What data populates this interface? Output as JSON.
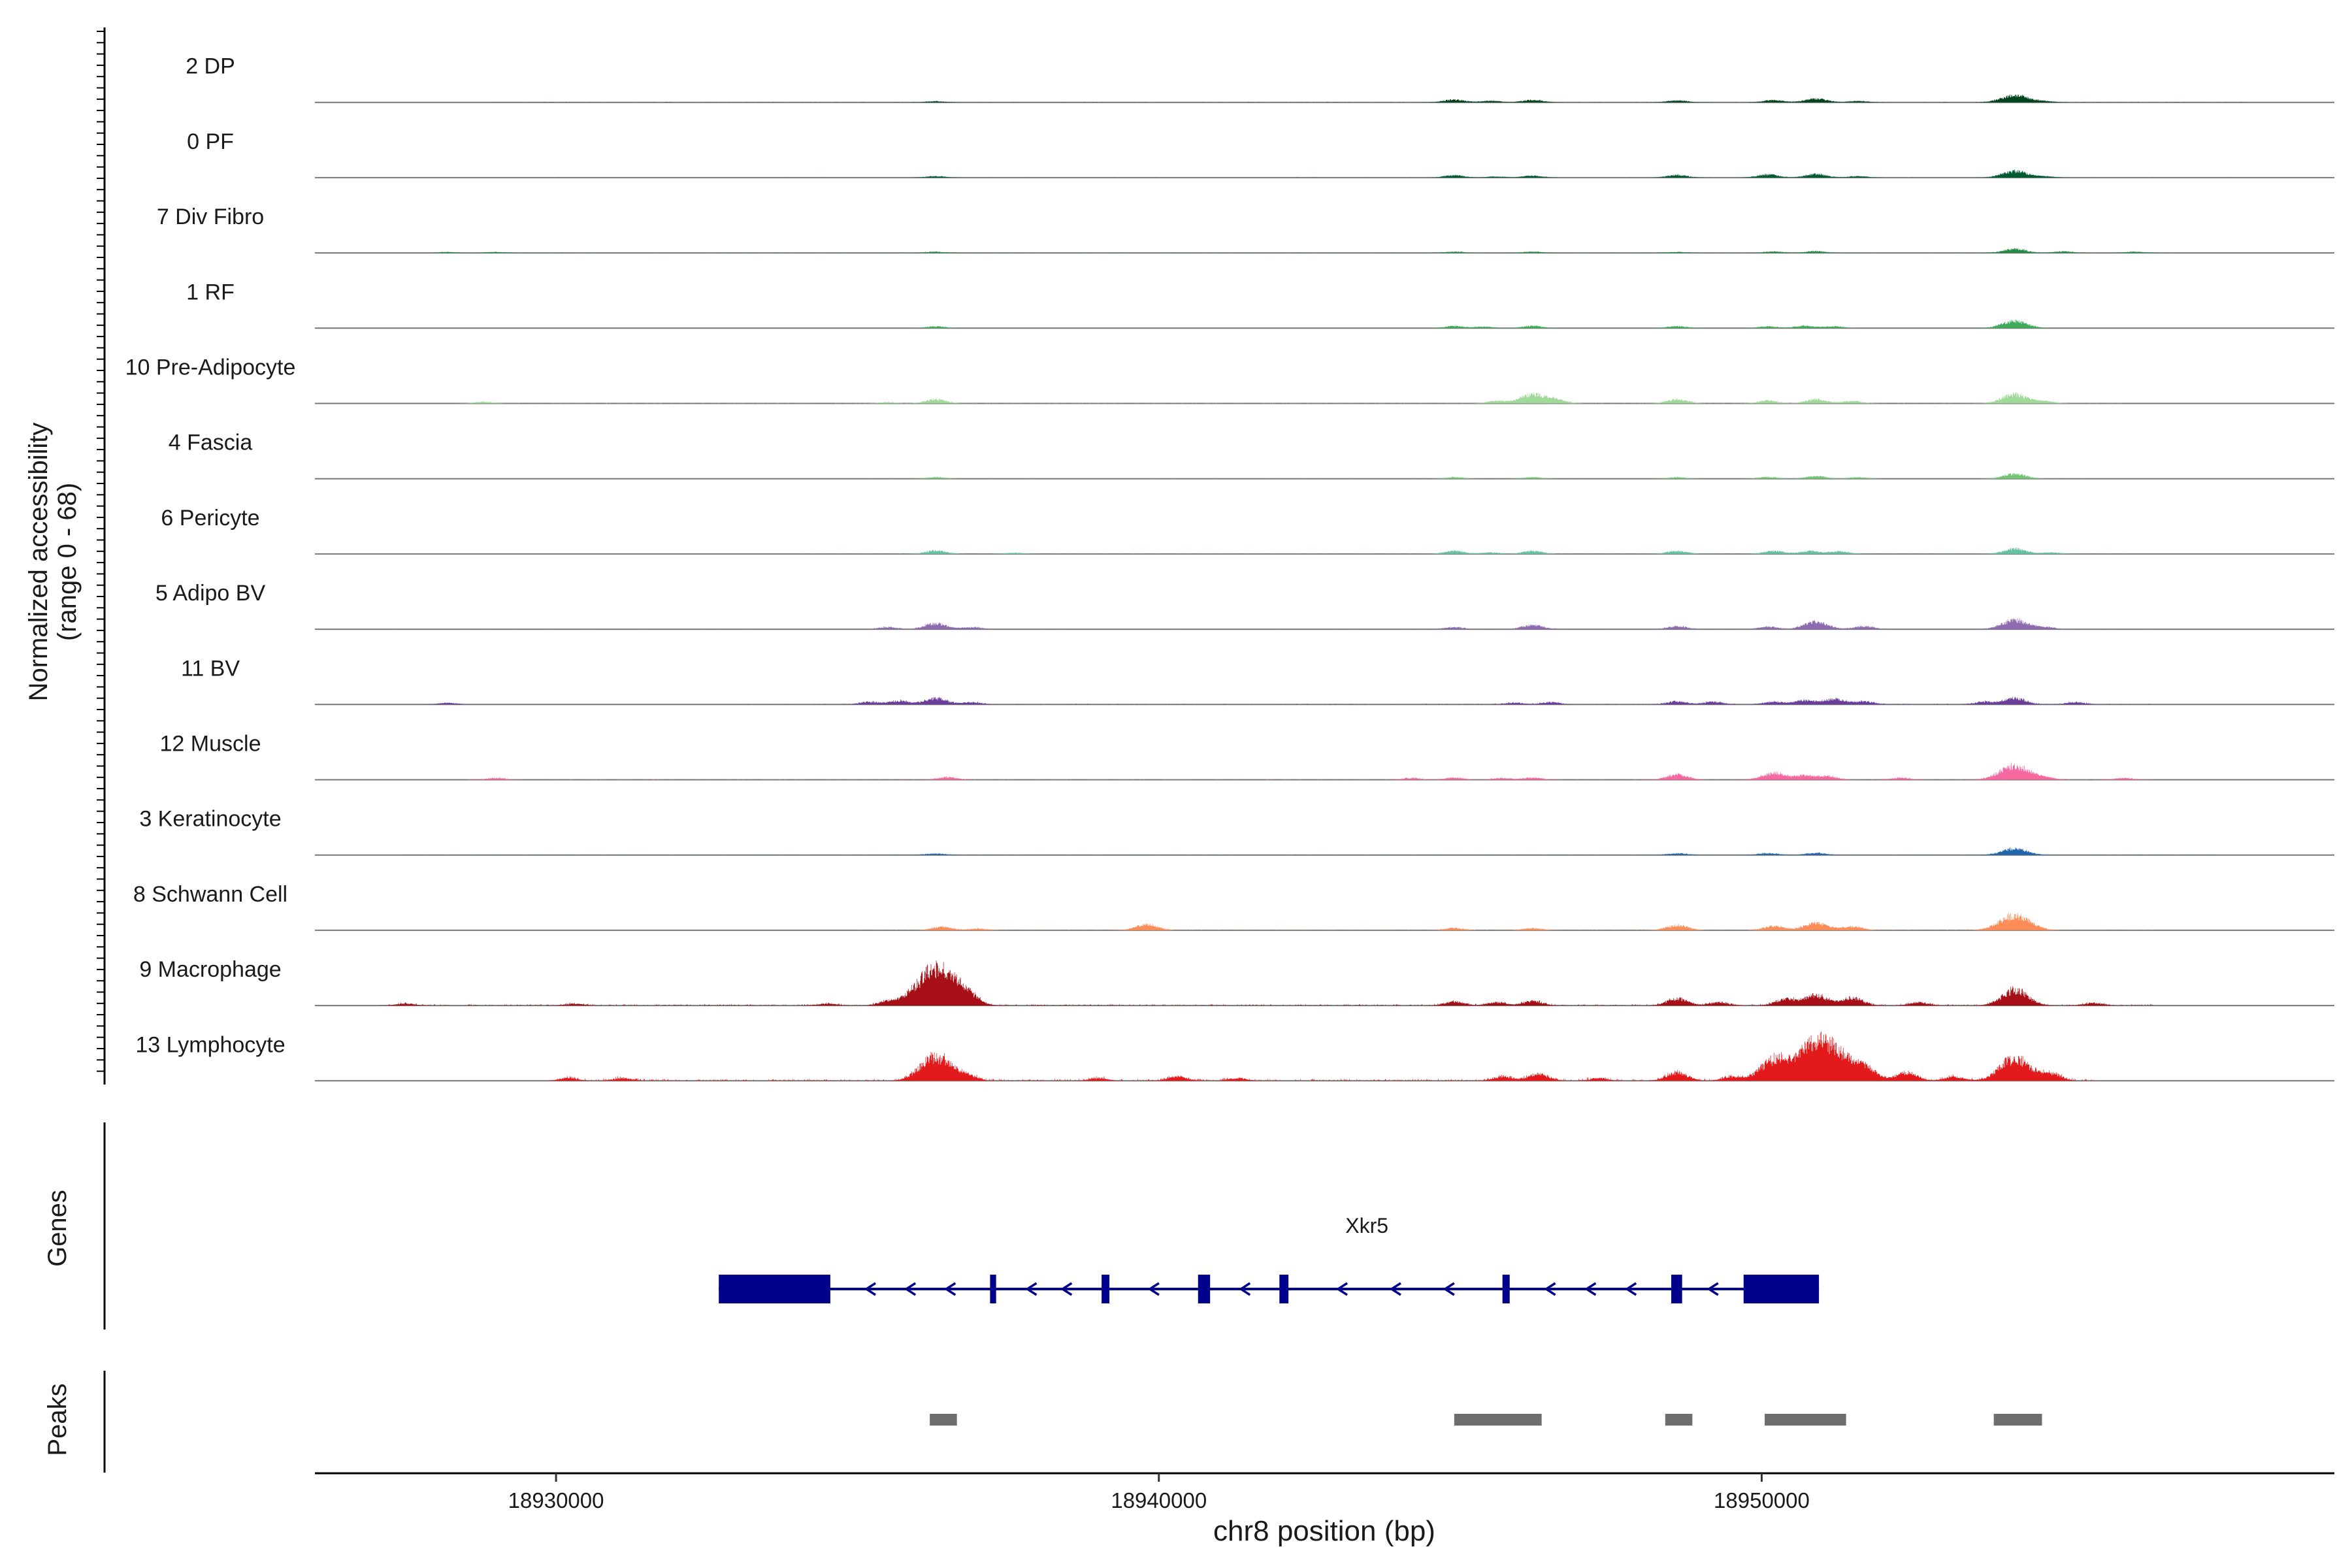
{
  "chart_data": {
    "type": "area",
    "title": "",
    "ylabel_line1": "Normalized accessibility",
    "ylabel_line2": "(range 0 - 68)",
    "y_range": [
      0,
      68
    ],
    "xlabel": "chr8 position (bp)",
    "x_range": [
      18926000,
      18959500
    ],
    "x_ticks": [
      {
        "value": 18930000,
        "label": "18930000"
      },
      {
        "value": 18940000,
        "label": "18940000"
      },
      {
        "value": 18950000,
        "label": "18950000"
      }
    ],
    "tracks": [
      {
        "name": "2 DP",
        "color": "#00441b",
        "scale": 0.28,
        "peaks": [
          [
            18936300,
            4
          ],
          [
            18944900,
            10
          ],
          [
            18945500,
            6
          ],
          [
            18946200,
            9
          ],
          [
            18948600,
            7
          ],
          [
            18950200,
            8
          ],
          [
            18950900,
            14
          ],
          [
            18951600,
            5
          ],
          [
            18954200,
            26
          ],
          [
            18954700,
            4
          ]
        ],
        "noise": [
          [
            18929000,
            18958000,
            0.9
          ]
        ]
      },
      {
        "name": "0 PF",
        "color": "#005a32",
        "scale": 0.3,
        "peaks": [
          [
            18936300,
            5
          ],
          [
            18944900,
            8
          ],
          [
            18945600,
            4
          ],
          [
            18946200,
            7
          ],
          [
            18948600,
            9
          ],
          [
            18950100,
            11
          ],
          [
            18950900,
            12
          ],
          [
            18951600,
            5
          ],
          [
            18954200,
            22
          ],
          [
            18954700,
            4
          ]
        ],
        "noise": [
          [
            18930000,
            18958000,
            0.7
          ]
        ]
      },
      {
        "name": "7 Div Fibro",
        "color": "#238b45",
        "scale": 0.3,
        "peaks": [
          [
            18928200,
            3
          ],
          [
            18929000,
            3
          ],
          [
            18936300,
            4
          ],
          [
            18944900,
            4
          ],
          [
            18946200,
            4
          ],
          [
            18948600,
            3
          ],
          [
            18950200,
            5
          ],
          [
            18950900,
            6
          ],
          [
            18954200,
            14
          ],
          [
            18955000,
            5
          ],
          [
            18956200,
            4
          ]
        ],
        "noise": [
          [
            18928000,
            18957000,
            1.2
          ]
        ]
      },
      {
        "name": "1 RF",
        "color": "#41ab5d",
        "scale": 0.3,
        "peaks": [
          [
            18936300,
            6
          ],
          [
            18944900,
            7
          ],
          [
            18945400,
            5
          ],
          [
            18946200,
            8
          ],
          [
            18948600,
            7
          ],
          [
            18950100,
            6
          ],
          [
            18950700,
            8
          ],
          [
            18951200,
            6
          ],
          [
            18954200,
            24
          ]
        ],
        "noise": [
          [
            18935000,
            18956000,
            0.6
          ]
        ]
      },
      {
        "name": "10 Pre-Adipocyte",
        "color": "#a1d99b",
        "scale": 0.42,
        "peaks": [
          [
            18928800,
            4
          ],
          [
            18935500,
            3
          ],
          [
            18936300,
            10
          ],
          [
            18945600,
            6
          ],
          [
            18946200,
            22
          ],
          [
            18946600,
            8
          ],
          [
            18948600,
            10
          ],
          [
            18950100,
            7
          ],
          [
            18950900,
            10
          ],
          [
            18951500,
            6
          ],
          [
            18954200,
            22
          ],
          [
            18954700,
            5
          ]
        ],
        "noise": [
          [
            18929000,
            18956000,
            0.8
          ]
        ]
      },
      {
        "name": "4 Fascia",
        "color": "#74c476",
        "scale": 0.3,
        "peaks": [
          [
            18936300,
            5
          ],
          [
            18944900,
            5
          ],
          [
            18946200,
            5
          ],
          [
            18948600,
            5
          ],
          [
            18950100,
            6
          ],
          [
            18950900,
            9
          ],
          [
            18951600,
            5
          ],
          [
            18954200,
            16
          ]
        ],
        "noise": [
          [
            18935000,
            18956000,
            0.6
          ]
        ]
      },
      {
        "name": "6 Pericyte",
        "color": "#66c2a4",
        "scale": 0.38,
        "peaks": [
          [
            18936300,
            9
          ],
          [
            18937600,
            3
          ],
          [
            18944900,
            8
          ],
          [
            18945500,
            4
          ],
          [
            18946200,
            8
          ],
          [
            18948600,
            8
          ],
          [
            18950200,
            8
          ],
          [
            18950800,
            8
          ],
          [
            18951300,
            7
          ],
          [
            18954200,
            14
          ],
          [
            18954800,
            4
          ]
        ],
        "noise": [
          [
            18934000,
            18956000,
            0.7
          ]
        ]
      },
      {
        "name": "5 Adipo BV",
        "color": "#8c6bb1",
        "scale": 0.42,
        "peaks": [
          [
            18935500,
            5
          ],
          [
            18936300,
            14
          ],
          [
            18936900,
            5
          ],
          [
            18944900,
            5
          ],
          [
            18946200,
            10
          ],
          [
            18948600,
            7
          ],
          [
            18950100,
            6
          ],
          [
            18950900,
            18
          ],
          [
            18951700,
            7
          ],
          [
            18954200,
            22
          ],
          [
            18954700,
            5
          ]
        ],
        "noise": [
          [
            18927000,
            18957000,
            1.1
          ]
        ]
      },
      {
        "name": "11 BV",
        "color": "#6a3d9a",
        "scale": 0.45,
        "peaks": [
          [
            18928200,
            4
          ],
          [
            18935200,
            6
          ],
          [
            18935700,
            8
          ],
          [
            18936300,
            14
          ],
          [
            18936900,
            5
          ],
          [
            18945900,
            4
          ],
          [
            18946500,
            5
          ],
          [
            18948600,
            7
          ],
          [
            18949200,
            6
          ],
          [
            18950200,
            6
          ],
          [
            18950700,
            9
          ],
          [
            18951200,
            12
          ],
          [
            18951700,
            7
          ],
          [
            18953700,
            6
          ],
          [
            18954200,
            14
          ],
          [
            18955200,
            5
          ]
        ],
        "noise": [
          [
            18933000,
            18956500,
            1.3
          ]
        ]
      },
      {
        "name": "12 Muscle",
        "color": "#f768a1",
        "scale": 0.42,
        "peaks": [
          [
            18929000,
            4
          ],
          [
            18936500,
            6
          ],
          [
            18944200,
            4
          ],
          [
            18944900,
            5
          ],
          [
            18945700,
            4
          ],
          [
            18946200,
            5
          ],
          [
            18948600,
            12
          ],
          [
            18950200,
            16
          ],
          [
            18950700,
            10
          ],
          [
            18951100,
            8
          ],
          [
            18952300,
            5
          ],
          [
            18954200,
            34
          ],
          [
            18954700,
            5
          ],
          [
            18956000,
            4
          ]
        ],
        "noise": [
          [
            18928500,
            18956500,
            1.3
          ]
        ]
      },
      {
        "name": "3 Keratinocyte",
        "color": "#2166ac",
        "scale": 0.3,
        "peaks": [
          [
            18936300,
            5
          ],
          [
            18948600,
            6
          ],
          [
            18950100,
            6
          ],
          [
            18950900,
            7
          ],
          [
            18954200,
            22
          ]
        ],
        "noise": [
          [
            18927500,
            18957500,
            1.2
          ]
        ]
      },
      {
        "name": "8 Schwann Cell",
        "color": "#fc8d59",
        "scale": 0.42,
        "peaks": [
          [
            18936400,
            8
          ],
          [
            18937000,
            4
          ],
          [
            18939800,
            14
          ],
          [
            18944900,
            5
          ],
          [
            18946200,
            5
          ],
          [
            18948600,
            12
          ],
          [
            18950200,
            10
          ],
          [
            18950900,
            18
          ],
          [
            18951500,
            9
          ],
          [
            18954200,
            36
          ]
        ],
        "noise": [
          [
            18935000,
            18956500,
            0.9
          ]
        ]
      },
      {
        "name": "9 Macrophage",
        "color": "#a50f15",
        "scale": 0.65,
        "peaks": [
          [
            18927500,
            3
          ],
          [
            18930300,
            3
          ],
          [
            18934500,
            3
          ],
          [
            18935500,
            6
          ],
          [
            18936300,
            58
          ],
          [
            18936800,
            14
          ],
          [
            18944900,
            6
          ],
          [
            18945600,
            5
          ],
          [
            18946200,
            7
          ],
          [
            18948600,
            11
          ],
          [
            18949300,
            5
          ],
          [
            18950400,
            10
          ],
          [
            18950900,
            16
          ],
          [
            18951500,
            12
          ],
          [
            18952600,
            5
          ],
          [
            18954200,
            24
          ],
          [
            18955500,
            4
          ]
        ],
        "noise": [
          [
            18927000,
            18956500,
            1.5
          ]
        ]
      },
      {
        "name": "13 Lymphocyte",
        "color": "#e31a1c",
        "scale": 0.7,
        "peaks": [
          [
            18930200,
            4
          ],
          [
            18931100,
            4
          ],
          [
            18936300,
            36
          ],
          [
            18936800,
            8
          ],
          [
            18939000,
            4
          ],
          [
            18940300,
            6
          ],
          [
            18941300,
            4
          ],
          [
            18945700,
            6
          ],
          [
            18946300,
            10
          ],
          [
            18947300,
            4
          ],
          [
            18948600,
            12
          ],
          [
            18949500,
            6
          ],
          [
            18950200,
            30
          ],
          [
            18950700,
            24
          ],
          [
            18951100,
            52
          ],
          [
            18951700,
            18
          ],
          [
            18952400,
            12
          ],
          [
            18953200,
            6
          ],
          [
            18954200,
            34
          ],
          [
            18954800,
            10
          ]
        ],
        "noise": [
          [
            18930000,
            18955500,
            2.0
          ]
        ]
      }
    ],
    "gene": {
      "label": "Xkr5",
      "strand": "-",
      "color": "#00008b",
      "span": [
        18932700,
        18950950
      ],
      "exons": [
        [
          18932700,
          18934550
        ],
        [
          18937200,
          18937300
        ],
        [
          18939050,
          18939180
        ],
        [
          18940650,
          18940850
        ],
        [
          18942000,
          18942150
        ],
        [
          18945700,
          18945820
        ],
        [
          18948500,
          18948680
        ],
        [
          18949700,
          18950950
        ]
      ]
    },
    "peaks_track": {
      "color": "#6e6e6e",
      "regions": [
        [
          18936200,
          18936650
        ],
        [
          18944900,
          18946350
        ],
        [
          18948400,
          18948850
        ],
        [
          18950050,
          18951400
        ],
        [
          18953850,
          18954650
        ]
      ]
    },
    "panel_labels": {
      "genes": "Genes",
      "peaks": "Peaks"
    }
  }
}
